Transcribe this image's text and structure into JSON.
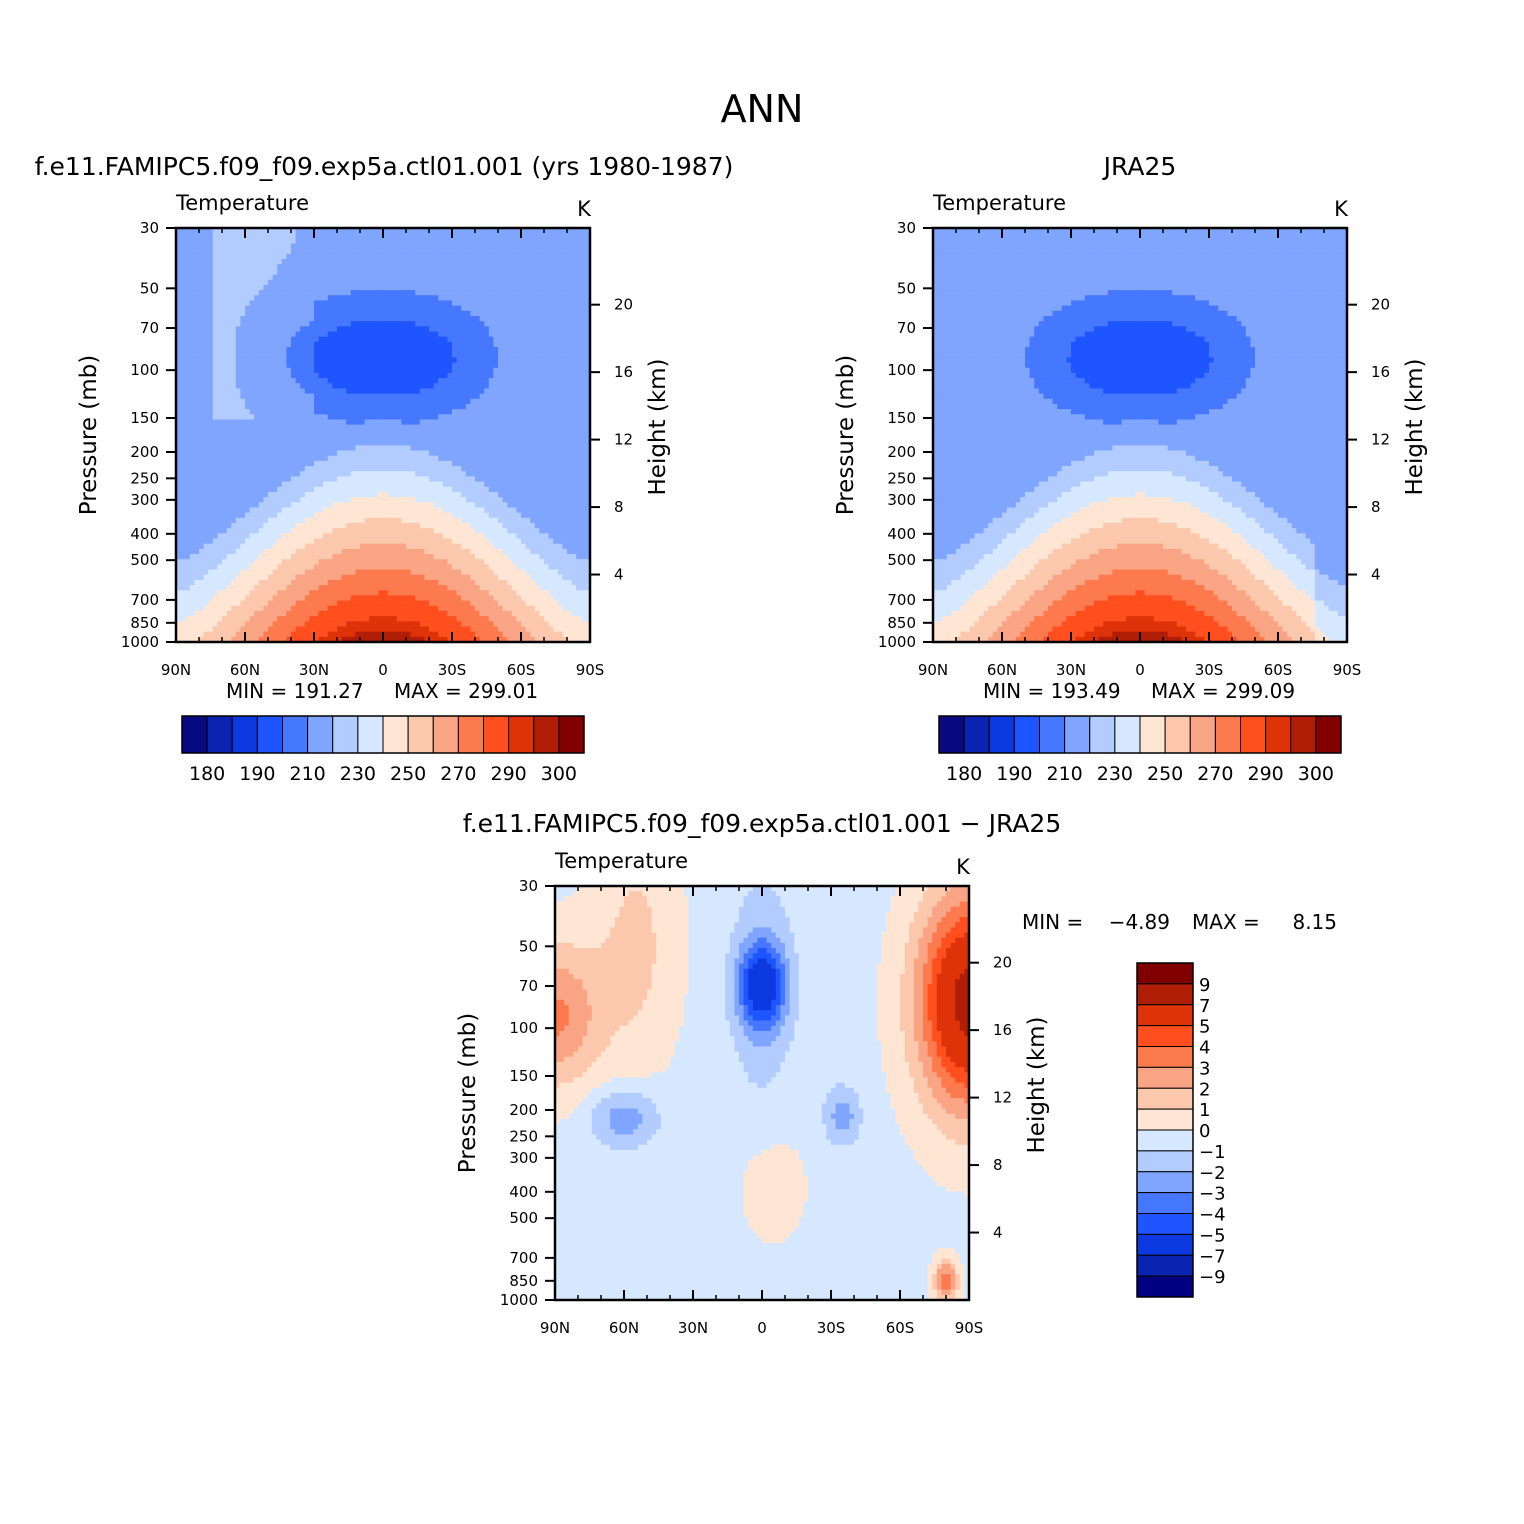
{
  "figure": {
    "title": "ANN"
  },
  "colors": {
    "abs_palette": [
      "#0a0a80",
      "#0a23b0",
      "#0d3ae0",
      "#1f55ff",
      "#4677ff",
      "#7fa5ff",
      "#b3ccff",
      "#d6e8ff",
      "#ffe6d4",
      "#fcc8ad",
      "#f9a585",
      "#fc7a4e",
      "#ff4f1e",
      "#de3208",
      "#b11e08",
      "#800000"
    ],
    "diff_palette": [
      "#000080",
      "#0a23b0",
      "#0d3ae0",
      "#1f55ff",
      "#4677ff",
      "#7fa5ff",
      "#b3ccff",
      "#d6e8ff",
      "#ffe6d4",
      "#fcc8ad",
      "#f9a585",
      "#fc7a4e",
      "#ff4f1e",
      "#de3208",
      "#b11e08",
      "#800000"
    ]
  },
  "panels": [
    {
      "id": "model",
      "header": "f.e11.FAMIPC5.f09_f09.exp5a.ctl01.001 (yrs 1980-1987)",
      "variable": "Temperature",
      "units": "K",
      "min_label": "MIN = 191.27",
      "max_label": "MAX = 299.01"
    },
    {
      "id": "obs",
      "header": "JRA25",
      "variable": "Temperature",
      "units": "K",
      "min_label": "MIN = 193.49",
      "max_label": "MAX = 299.09"
    },
    {
      "id": "diff",
      "header": "f.e11.FAMIPC5.f09_f09.exp5a.ctl01.001 − JRA25",
      "variable": "Temperature",
      "units": "K",
      "min_label": "MIN =",
      "min_value": "−4.89",
      "max_label": "MAX =",
      "max_value": "8.15"
    }
  ],
  "chart_data": [
    {
      "type": "heatmap",
      "title": "Temperature",
      "subtitle": "f.e11.FAMIPC5.f09_f09.exp5a.ctl01.001 (yrs 1980-1987)",
      "units": "K",
      "xlabel": "",
      "ylabel": "Pressure (mb)",
      "y2label": "Height (km)",
      "x_ticks": [
        "90N",
        "60N",
        "30N",
        "0",
        "30S",
        "60S",
        "90S"
      ],
      "y_ticks": [
        "30",
        "50",
        "70",
        "100",
        "150",
        "200",
        "250",
        "300",
        "400",
        "500",
        "700",
        "850",
        "1000"
      ],
      "y2_ticks": [
        "20",
        "16",
        "12",
        "8",
        "4"
      ],
      "contour_levels": [
        180,
        185,
        190,
        200,
        210,
        220,
        230,
        240,
        250,
        260,
        270,
        280,
        290,
        295,
        300
      ],
      "colorbar_labels": [
        "180",
        "190",
        "210",
        "230",
        "250",
        "270",
        "290",
        "300"
      ],
      "min": 191.27,
      "max": 299.01
    },
    {
      "type": "heatmap",
      "title": "Temperature",
      "subtitle": "JRA25",
      "units": "K",
      "xlabel": "",
      "ylabel": "Pressure (mb)",
      "y2label": "Height (km)",
      "x_ticks": [
        "90N",
        "60N",
        "30N",
        "0",
        "30S",
        "60S",
        "90S"
      ],
      "y_ticks": [
        "30",
        "50",
        "70",
        "100",
        "150",
        "200",
        "250",
        "300",
        "400",
        "500",
        "700",
        "850",
        "1000"
      ],
      "y2_ticks": [
        "20",
        "16",
        "12",
        "8",
        "4"
      ],
      "contour_levels": [
        180,
        185,
        190,
        200,
        210,
        220,
        230,
        240,
        250,
        260,
        270,
        280,
        290,
        295,
        300
      ],
      "colorbar_labels": [
        "180",
        "190",
        "210",
        "230",
        "250",
        "270",
        "290",
        "300"
      ],
      "min": 193.49,
      "max": 299.09
    },
    {
      "type": "heatmap",
      "title": "Temperature",
      "subtitle": "f.e11.FAMIPC5.f09_f09.exp5a.ctl01.001 − JRA25",
      "units": "K",
      "xlabel": "",
      "ylabel": "Pressure (mb)",
      "y2label": "Height (km)",
      "x_ticks": [
        "90N",
        "60N",
        "30N",
        "0",
        "30S",
        "60S",
        "90S"
      ],
      "y_ticks": [
        "30",
        "50",
        "70",
        "100",
        "150",
        "200",
        "250",
        "300",
        "400",
        "500",
        "700",
        "850",
        "1000"
      ],
      "y2_ticks": [
        "20",
        "16",
        "12",
        "8",
        "4"
      ],
      "contour_levels": [
        -9,
        -7,
        -5,
        -4,
        -3,
        -2,
        -1,
        0,
        1,
        2,
        3,
        4,
        5,
        7,
        9
      ],
      "colorbar_labels": [
        "9",
        "7",
        "5",
        "4",
        "3",
        "2",
        "1",
        "0",
        "−1",
        "−2",
        "−3",
        "−4",
        "−5",
        "−7",
        "−9"
      ],
      "min": -4.89,
      "max": 8.15
    }
  ]
}
